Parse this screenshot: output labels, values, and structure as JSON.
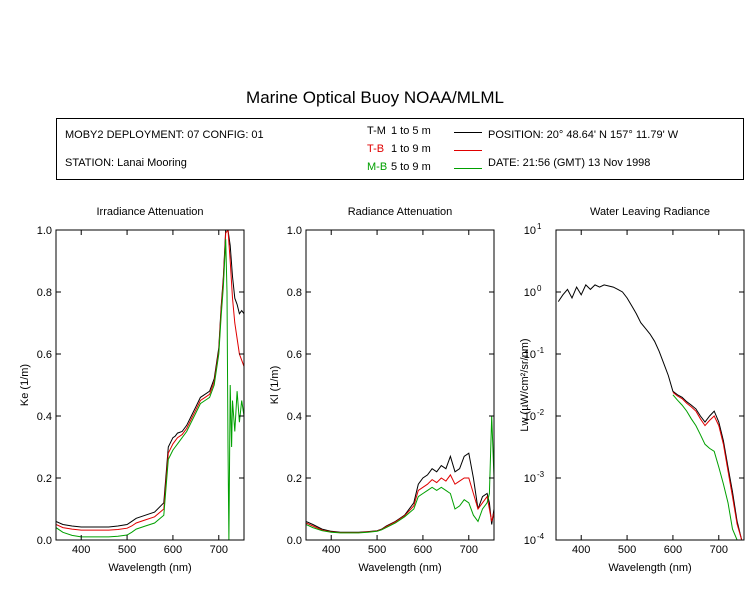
{
  "title": "Marine Optical Buoy NOAA/MLML",
  "info": {
    "deployment": "MOBY2 DEPLOYMENT: 07 CONFIG: 01",
    "station": "STATION: Lanai Mooring",
    "position": "POSITION: 20° 48.64' N   157° 11.79' W",
    "date": "DATE: 21:56 (GMT) 13 Nov 1998",
    "legend": [
      {
        "code": "T-M",
        "range": "1 to 5  m",
        "color": "#000000"
      },
      {
        "code": "T-B",
        "range": "1 to 9  m",
        "color": "#e00000"
      },
      {
        "code": "M-B",
        "range": "5 to 9  m",
        "color": "#00a000"
      }
    ]
  },
  "chart_data": [
    {
      "type": "line",
      "title": "Irradiance Attenuation",
      "xlabel": "Wavelength (nm)",
      "ylabel": "Ke  (1/m)",
      "xlim": [
        345,
        755
      ],
      "ylim": [
        0,
        1
      ],
      "xticks": [
        400,
        500,
        600,
        700
      ],
      "yticks": [
        "0.0",
        "0.2",
        "0.4",
        "0.6",
        "0.8",
        "1.0"
      ],
      "series": [
        {
          "name": "T-M",
          "color": "#000000",
          "x": [
            345,
            360,
            380,
            400,
            420,
            440,
            460,
            480,
            500,
            510,
            520,
            540,
            560,
            580,
            590,
            600,
            605,
            610,
            620,
            630,
            640,
            650,
            660,
            670,
            680,
            690,
            700,
            705,
            710,
            715,
            720,
            725,
            730,
            735,
            740,
            745,
            750,
            755
          ],
          "y": [
            0.06,
            0.05,
            0.045,
            0.042,
            0.042,
            0.042,
            0.042,
            0.045,
            0.05,
            0.06,
            0.07,
            0.08,
            0.09,
            0.12,
            0.3,
            0.33,
            0.335,
            0.345,
            0.35,
            0.37,
            0.4,
            0.43,
            0.46,
            0.47,
            0.48,
            0.52,
            0.62,
            0.75,
            0.85,
            1.0,
            1.0,
            0.95,
            0.85,
            0.78,
            0.76,
            0.73,
            0.74,
            0.73
          ]
        },
        {
          "name": "T-B",
          "color": "#e00000",
          "x": [
            345,
            360,
            380,
            400,
            420,
            440,
            460,
            480,
            500,
            510,
            520,
            540,
            560,
            580,
            590,
            600,
            605,
            610,
            620,
            630,
            640,
            650,
            660,
            670,
            680,
            690,
            700,
            705,
            710,
            715,
            720,
            725,
            730,
            735,
            740,
            745,
            750,
            755
          ],
          "y": [
            0.05,
            0.04,
            0.035,
            0.032,
            0.032,
            0.032,
            0.032,
            0.034,
            0.038,
            0.045,
            0.055,
            0.065,
            0.075,
            0.1,
            0.28,
            0.31,
            0.32,
            0.33,
            0.34,
            0.36,
            0.39,
            0.42,
            0.45,
            0.46,
            0.47,
            0.51,
            0.61,
            0.74,
            0.84,
            0.99,
            1.0,
            0.9,
            0.78,
            0.7,
            0.65,
            0.6,
            0.58,
            0.56
          ]
        },
        {
          "name": "M-B",
          "color": "#00a000",
          "x": [
            345,
            360,
            380,
            400,
            420,
            440,
            460,
            480,
            500,
            510,
            520,
            540,
            560,
            580,
            590,
            600,
            605,
            610,
            620,
            630,
            640,
            650,
            660,
            670,
            680,
            690,
            700,
            705,
            710,
            715,
            718,
            720,
            722,
            725,
            728,
            730,
            735,
            740,
            745,
            750,
            755
          ],
          "y": [
            0.04,
            0.025,
            0.015,
            0.01,
            0.01,
            0.01,
            0.01,
            0.012,
            0.016,
            0.025,
            0.035,
            0.045,
            0.055,
            0.08,
            0.26,
            0.29,
            0.3,
            0.31,
            0.33,
            0.35,
            0.38,
            0.41,
            0.44,
            0.45,
            0.46,
            0.5,
            0.6,
            0.72,
            0.82,
            0.97,
            0.8,
            0.3,
            0.0,
            0.5,
            0.3,
            0.45,
            0.35,
            0.48,
            0.38,
            0.45,
            0.4
          ]
        }
      ]
    },
    {
      "type": "line",
      "title": "Radiance Attenuation",
      "xlabel": "Wavelength (nm)",
      "ylabel": "Kl  (1/m)",
      "xlim": [
        345,
        755
      ],
      "ylim": [
        0,
        1
      ],
      "xticks": [
        400,
        500,
        600,
        700
      ],
      "yticks": [
        "0.0",
        "0.2",
        "0.4",
        "0.6",
        "0.8",
        "1.0"
      ],
      "series": [
        {
          "name": "T-M",
          "color": "#000000",
          "x": [
            345,
            360,
            380,
            400,
            420,
            440,
            460,
            480,
            500,
            510,
            520,
            540,
            560,
            580,
            590,
            600,
            610,
            620,
            630,
            640,
            650,
            660,
            670,
            680,
            690,
            700,
            710,
            720,
            730,
            740,
            745,
            750,
            755
          ],
          "y": [
            0.06,
            0.05,
            0.035,
            0.028,
            0.025,
            0.025,
            0.025,
            0.027,
            0.03,
            0.035,
            0.045,
            0.06,
            0.08,
            0.12,
            0.18,
            0.2,
            0.21,
            0.23,
            0.22,
            0.24,
            0.23,
            0.27,
            0.22,
            0.23,
            0.27,
            0.28,
            0.2,
            0.1,
            0.14,
            0.15,
            0.12,
            0.05,
            0.1
          ]
        },
        {
          "name": "T-B",
          "color": "#e00000",
          "x": [
            345,
            360,
            380,
            400,
            420,
            440,
            460,
            480,
            500,
            510,
            520,
            540,
            560,
            580,
            590,
            600,
            610,
            620,
            630,
            640,
            650,
            660,
            670,
            680,
            690,
            700,
            710,
            720,
            730,
            740,
            745,
            750,
            755
          ],
          "y": [
            0.055,
            0.045,
            0.032,
            0.026,
            0.024,
            0.024,
            0.024,
            0.026,
            0.029,
            0.034,
            0.043,
            0.058,
            0.078,
            0.11,
            0.16,
            0.17,
            0.18,
            0.195,
            0.185,
            0.2,
            0.19,
            0.21,
            0.18,
            0.19,
            0.2,
            0.2,
            0.15,
            0.1,
            0.12,
            0.14,
            0.1,
            0.06,
            0.09
          ]
        },
        {
          "name": "M-B",
          "color": "#00a000",
          "x": [
            345,
            360,
            380,
            400,
            420,
            440,
            460,
            480,
            500,
            510,
            520,
            540,
            560,
            580,
            590,
            600,
            610,
            620,
            630,
            640,
            650,
            660,
            670,
            680,
            690,
            700,
            710,
            720,
            730,
            740,
            745,
            750,
            755
          ],
          "y": [
            0.05,
            0.04,
            0.03,
            0.025,
            0.023,
            0.023,
            0.023,
            0.025,
            0.028,
            0.033,
            0.04,
            0.055,
            0.075,
            0.1,
            0.14,
            0.15,
            0.16,
            0.17,
            0.16,
            0.17,
            0.16,
            0.15,
            0.1,
            0.11,
            0.13,
            0.12,
            0.08,
            0.06,
            0.1,
            0.12,
            0.15,
            0.4,
            0.2
          ]
        }
      ]
    },
    {
      "type": "line",
      "title": "Water Leaving Radiance",
      "xlabel": "Wavelength (nm)",
      "ylabel": "Lw  (µW/cm²/sr/nm)",
      "log_y": true,
      "xlim": [
        345,
        755
      ],
      "ylim": [
        0.0001,
        10
      ],
      "xticks": [
        400,
        500,
        600,
        700
      ],
      "yticks_exp": [
        1,
        0,
        -1,
        -2,
        -3,
        -4
      ],
      "series": [
        {
          "name": "T-M",
          "color": "#000000",
          "x": [
            350,
            360,
            370,
            380,
            390,
            400,
            410,
            420,
            430,
            440,
            450,
            460,
            470,
            480,
            490,
            500,
            510,
            520,
            530,
            540,
            550,
            560,
            570,
            580,
            590,
            600,
            610,
            620,
            630,
            640,
            650,
            660,
            670,
            680,
            690,
            700,
            710,
            720,
            730,
            740,
            750
          ],
          "y": [
            0.7,
            0.9,
            1.1,
            0.8,
            1.2,
            0.9,
            1.3,
            1.1,
            1.3,
            1.2,
            1.3,
            1.25,
            1.2,
            1.1,
            1.0,
            0.8,
            0.6,
            0.45,
            0.32,
            0.26,
            0.21,
            0.16,
            0.11,
            0.07,
            0.045,
            0.025,
            0.022,
            0.02,
            0.017,
            0.015,
            0.013,
            0.01,
            0.008,
            0.01,
            0.012,
            0.008,
            0.004,
            0.0015,
            0.0006,
            0.0002,
            0.0001
          ]
        },
        {
          "name": "T-B",
          "color": "#e00000",
          "x": [
            600,
            610,
            620,
            630,
            640,
            650,
            660,
            670,
            680,
            690,
            700,
            710,
            720,
            730,
            740,
            750
          ],
          "y": [
            0.024,
            0.021,
            0.019,
            0.016,
            0.014,
            0.012,
            0.009,
            0.007,
            0.0085,
            0.01,
            0.007,
            0.0035,
            0.0013,
            0.0005,
            0.00018,
            0.0001
          ]
        },
        {
          "name": "M-B",
          "color": "#00a000",
          "x": [
            600,
            610,
            620,
            630,
            640,
            650,
            660,
            670,
            680,
            690,
            700,
            710,
            720,
            730,
            740,
            750
          ],
          "y": [
            0.022,
            0.018,
            0.015,
            0.012,
            0.009,
            0.007,
            0.005,
            0.0035,
            0.003,
            0.0027,
            0.0015,
            0.0008,
            0.0004,
            0.00015,
            0.0001,
            0.0001
          ]
        }
      ]
    }
  ]
}
